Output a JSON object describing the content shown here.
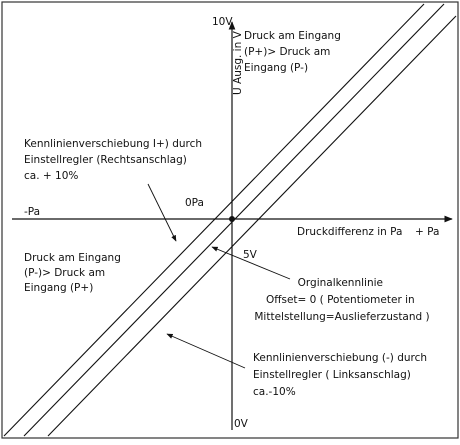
{
  "axes": {
    "y_top": "10V",
    "y_bottom": "0V",
    "y_title": "U Ausg. in V",
    "x_left": "-Pa",
    "x_right": "+ Pa",
    "x_title": "Druckdifferenz in Pa",
    "origin_label": "0Pa",
    "mid_label": "5V"
  },
  "regions": {
    "upper_right": [
      "Druck am Eingang",
      "(P+)> Druck am",
      "Eingang (P-)"
    ],
    "lower_left": [
      "Druck am Eingang",
      "(P-)> Druck am",
      "Eingang (P+)"
    ]
  },
  "annotations": {
    "shift_plus": [
      "Kennlinienverschiebung I+) durch",
      "Einstellregler (Rechtsanschlag)",
      "ca. + 10%"
    ],
    "original": [
      "Orginalkennlinie",
      "Offset= 0 ( Potentiometer in",
      "Mittelstellung=Auslieferzustand )"
    ],
    "shift_minus": [
      "Kennlinienverschiebung (-) durch",
      "Einstellregler ( Linksanschlag)",
      "ca.-10%"
    ]
  }
}
